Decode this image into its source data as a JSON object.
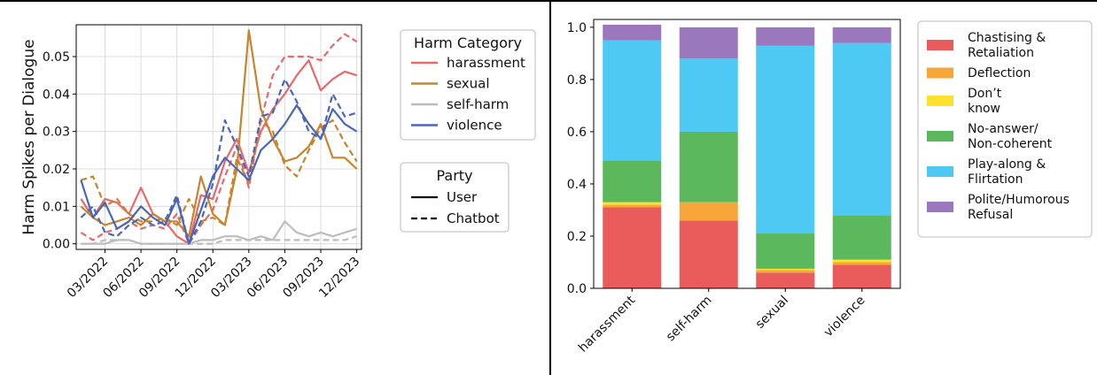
{
  "chart_data": [
    {
      "type": "line",
      "ylabel": "Harm Spikes per Dialogue",
      "xlabel": "",
      "x_ticks": [
        "03/2022",
        "06/2022",
        "09/2022",
        "12/2022",
        "03/2023",
        "06/2023",
        "09/2023",
        "12/2023"
      ],
      "x_tick_positions": [
        3,
        6,
        9,
        12,
        15,
        18,
        21,
        24
      ],
      "xlim": [
        0.6,
        24.4
      ],
      "y_ticks": [
        "0.00",
        "0.01",
        "0.02",
        "0.03",
        "0.04",
        "0.05"
      ],
      "y_tick_values": [
        0,
        0.01,
        0.02,
        0.03,
        0.04,
        0.05
      ],
      "ylim": [
        -0.0015,
        0.0585
      ],
      "grid": true,
      "legend_categories_title": "Harm Category",
      "legend_party_title": "Party",
      "party_labels": {
        "solid": "User",
        "dashed": "Chatbot"
      },
      "series": [
        {
          "name": "harassment",
          "color": "#e8696b",
          "x": [
            1,
            2,
            3,
            4,
            5,
            6,
            7,
            8,
            9,
            10,
            11,
            12,
            13,
            14,
            15,
            16,
            17,
            18,
            19,
            20,
            21,
            22,
            23,
            24
          ],
          "user": [
            0.012,
            0.007,
            0.012,
            0.011,
            0.008,
            0.015,
            0.008,
            0.006,
            0.002,
            0.0,
            0.013,
            0.012,
            0.022,
            0.028,
            0.019,
            0.03,
            0.036,
            0.04,
            0.045,
            0.049,
            0.041,
            0.044,
            0.046,
            0.045
          ],
          "chatbot": [
            0.003,
            0.001,
            0.003,
            0.004,
            0.006,
            0.004,
            0.005,
            0.004,
            0.008,
            0.0,
            0.005,
            0.009,
            0.018,
            0.026,
            0.015,
            0.033,
            0.045,
            0.05,
            0.05,
            0.05,
            0.049,
            0.053,
            0.056,
            0.054
          ]
        },
        {
          "name": "sexual",
          "color": "#c8842d",
          "x": [
            1,
            2,
            3,
            4,
            5,
            6,
            7,
            8,
            9,
            10,
            11,
            12,
            13,
            14,
            15,
            16,
            17,
            18,
            19,
            20,
            21,
            22,
            23,
            24
          ],
          "user": [
            0.01,
            0.007,
            0.005,
            0.006,
            0.007,
            0.005,
            0.008,
            0.006,
            0.006,
            0.002,
            0.018,
            0.008,
            0.005,
            0.02,
            0.057,
            0.036,
            0.028,
            0.022,
            0.023,
            0.026,
            0.032,
            0.023,
            0.023,
            0.02
          ],
          "chatbot": [
            0.017,
            0.018,
            0.01,
            0.012,
            0.008,
            0.006,
            0.006,
            0.007,
            0.005,
            0.012,
            0.006,
            0.007,
            0.005,
            0.023,
            0.016,
            0.033,
            0.03,
            0.021,
            0.018,
            0.025,
            0.031,
            0.033,
            0.027,
            0.022
          ]
        },
        {
          "name": "self-harm",
          "color": "#bdbdbd",
          "x": [
            1,
            2,
            3,
            4,
            5,
            6,
            7,
            8,
            9,
            10,
            11,
            12,
            13,
            14,
            15,
            16,
            17,
            18,
            19,
            20,
            21,
            22,
            23,
            24
          ],
          "user": [
            0.0,
            0.0,
            0.0,
            0.001,
            0.001,
            0.0,
            0.0,
            0.0,
            0.0,
            0.0,
            0.001,
            0.001,
            0.002,
            0.002,
            0.001,
            0.002,
            0.001,
            0.006,
            0.003,
            0.002,
            0.003,
            0.002,
            0.003,
            0.004
          ],
          "chatbot": [
            0.0,
            0.0,
            0.001,
            0.001,
            0.001,
            0.0,
            0.0,
            0.0,
            0.0,
            0.0,
            0.0,
            0.0,
            0.001,
            0.001,
            0.001,
            0.001,
            0.001,
            0.001,
            0.001,
            0.001,
            0.001,
            0.001,
            0.001,
            0.002
          ]
        },
        {
          "name": "violence",
          "color": "#4a66ba",
          "x": [
            1,
            2,
            3,
            4,
            5,
            6,
            7,
            8,
            9,
            10,
            11,
            12,
            13,
            14,
            15,
            16,
            17,
            18,
            19,
            20,
            21,
            22,
            23,
            24
          ],
          "user": [
            0.017,
            0.007,
            0.011,
            0.004,
            0.006,
            0.01,
            0.007,
            0.005,
            0.012,
            0.0,
            0.009,
            0.018,
            0.023,
            0.02,
            0.017,
            0.025,
            0.028,
            0.032,
            0.037,
            0.032,
            0.028,
            0.036,
            0.032,
            0.03
          ],
          "chatbot": [
            0.007,
            0.01,
            0.003,
            0.002,
            0.005,
            0.007,
            0.005,
            0.006,
            0.013,
            0.0,
            0.006,
            0.016,
            0.033,
            0.026,
            0.018,
            0.034,
            0.035,
            0.044,
            0.038,
            0.03,
            0.028,
            0.04,
            0.034,
            0.035
          ]
        }
      ]
    },
    {
      "type": "bar",
      "stacked": true,
      "categories": [
        "harassment",
        "self-harm",
        "sexual",
        "violence"
      ],
      "y_ticks": [
        "0.0",
        "0.2",
        "0.4",
        "0.6",
        "0.8",
        "1.0"
      ],
      "y_tick_values": [
        0,
        0.2,
        0.4,
        0.6,
        0.8,
        1.0
      ],
      "ylim": [
        0,
        1.03
      ],
      "grid": false,
      "series": [
        {
          "name": "Chastising & Retaliation",
          "legend_lines": [
            "Chastising &",
            "Retaliation"
          ],
          "color": "#ea5c5c",
          "values": [
            0.31,
            0.26,
            0.06,
            0.09
          ]
        },
        {
          "name": "Deflection",
          "legend_lines": [
            "Deflection"
          ],
          "color": "#f7a63a",
          "values": [
            0.01,
            0.07,
            0.01,
            0.01
          ]
        },
        {
          "name": "Don't know",
          "legend_lines": [
            "Don’t",
            "know"
          ],
          "color": "#ffe02e",
          "values": [
            0.01,
            0.0,
            0.005,
            0.01
          ]
        },
        {
          "name": "No-answer/Non-coherent",
          "legend_lines": [
            "No-answer/",
            "Non-coherent"
          ],
          "color": "#5cb85c",
          "values": [
            0.16,
            0.27,
            0.135,
            0.17
          ]
        },
        {
          "name": "Play-along & Flirtation",
          "legend_lines": [
            "Play-along &",
            "Flirtation"
          ],
          "color": "#4ec9f4",
          "values": [
            0.46,
            0.28,
            0.72,
            0.66
          ]
        },
        {
          "name": "Polite/Humorous Refusal",
          "legend_lines": [
            "Polite/Humorous",
            "Refusal"
          ],
          "color": "#9b78bd",
          "values": [
            0.06,
            0.12,
            0.07,
            0.06
          ]
        }
      ]
    }
  ]
}
